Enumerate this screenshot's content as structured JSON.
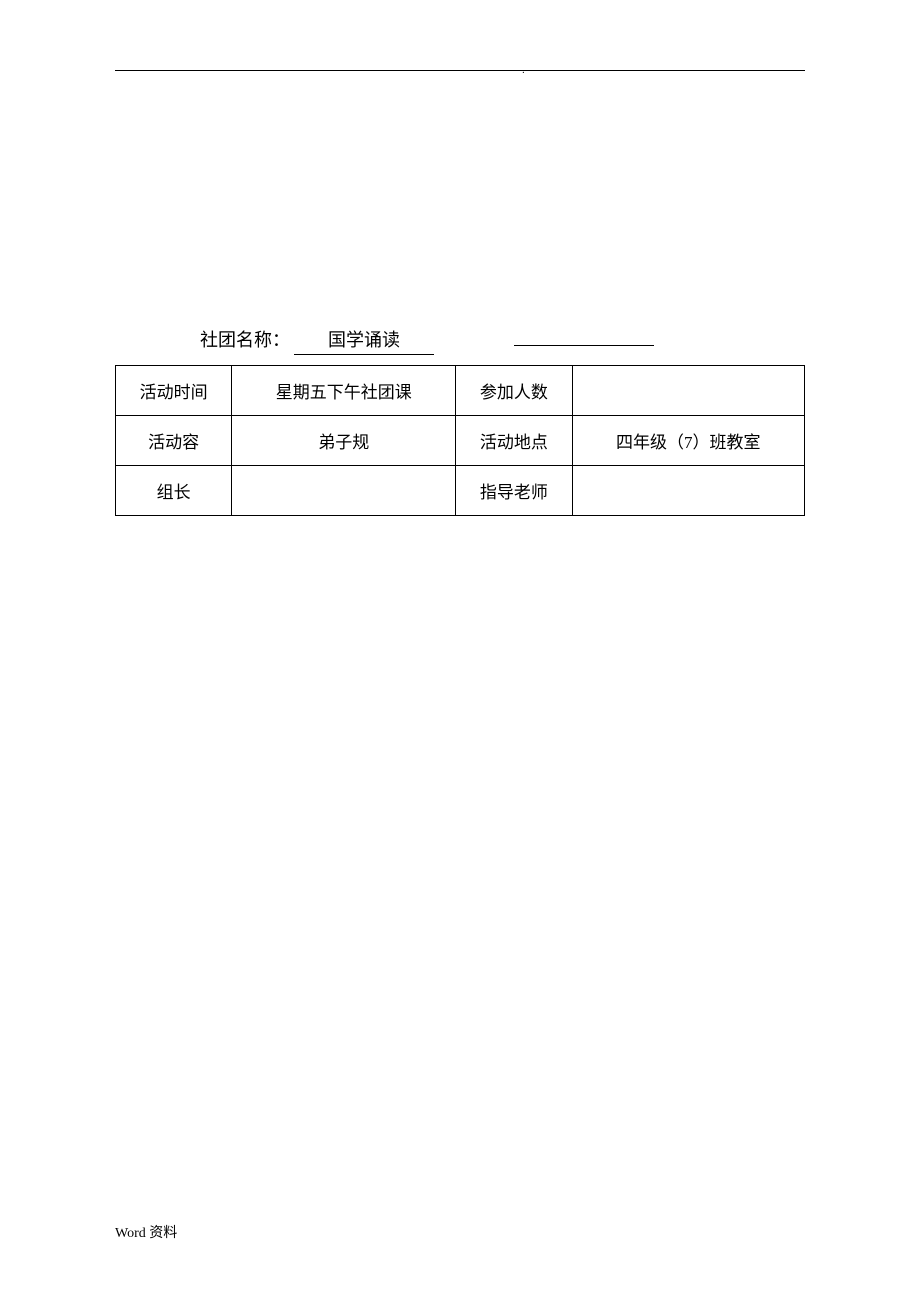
{
  "page": {
    "background_color": "#ffffff",
    "border_color": "#000000",
    "text_color": "#000000",
    "font_family": "SimSun"
  },
  "header": {
    "dot": "."
  },
  "club_name": {
    "label": "社团名称：",
    "value": "国学诵读",
    "blank": ""
  },
  "table": {
    "rows": [
      {
        "label1": "活动时间",
        "value1": "星期五下午社团课",
        "label2": "参加人数",
        "value2": ""
      },
      {
        "label1": "活动容",
        "value1": "弟子规",
        "label2": "活动地点",
        "value2": "四年级（7）班教室"
      },
      {
        "label1": "组长",
        "value1": "",
        "label2": "指导老师",
        "value2": ""
      }
    ]
  },
  "footer": {
    "text": "Word 资料"
  }
}
